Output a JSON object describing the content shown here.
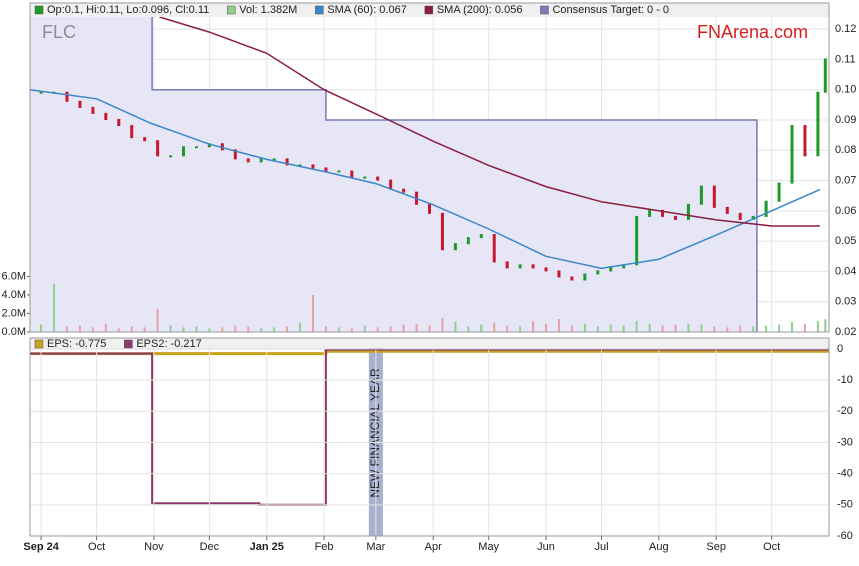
{
  "chart_data": [
    {
      "type": "stock",
      "watermark": "FLC",
      "brand": "FNArena.com",
      "xlim": [
        -6,
        426
      ],
      "ylim": [
        0.02,
        0.124
      ],
      "yticks": [
        0.02,
        0.03,
        0.04,
        0.05,
        0.06,
        0.07,
        0.08,
        0.09,
        {
          "value": 0.1,
          "label": "0.10"
        },
        0.11,
        0.12
      ],
      "y2lim": [
        0,
        34000000
      ],
      "y2ticks": [
        {
          "value": 0,
          "label": "0.0M"
        },
        {
          "value": 2000000,
          "label": "2.0M"
        },
        {
          "value": 4000000,
          "label": "4.0M"
        },
        {
          "value": 6000000,
          "label": "6.0M"
        }
      ],
      "up_color": "#1e9a28",
      "down_color": "#c8182e",
      "series": [
        {
          "name": "Op:0.1, Hi:0.11, Lo:0.096, Cl:0.11",
          "kind": "price",
          "color": "#1e9a28",
          "x": [
            0,
            7,
            14,
            21,
            28,
            35,
            42,
            49,
            56,
            63,
            70,
            77,
            84,
            91,
            98,
            105,
            112,
            119,
            126,
            133,
            140,
            147,
            154,
            161,
            168,
            175,
            182,
            189,
            196,
            203,
            210,
            217,
            224,
            231,
            238,
            245,
            252,
            259,
            266,
            273,
            280,
            287,
            294,
            301,
            308,
            315,
            322,
            329,
            336,
            343,
            350,
            357,
            364,
            371,
            378,
            385,
            392,
            399,
            406,
            413,
            420,
            424
          ],
          "values": [
            0.099,
            0.099,
            0.096,
            0.094,
            0.092,
            0.09,
            0.088,
            0.084,
            0.083,
            0.078,
            0.078,
            0.081,
            0.081,
            0.082,
            0.08,
            0.077,
            0.076,
            0.077,
            0.077,
            0.075,
            0.075,
            0.074,
            0.073,
            0.073,
            0.071,
            0.071,
            0.07,
            0.067,
            0.066,
            0.062,
            0.059,
            0.047,
            0.049,
            0.051,
            0.052,
            0.043,
            0.041,
            0.042,
            0.041,
            0.04,
            0.038,
            0.037,
            0.039,
            0.04,
            0.041,
            0.042,
            0.058,
            0.06,
            0.058,
            0.057,
            0.062,
            0.068,
            0.061,
            0.059,
            0.057,
            0.058,
            0.063,
            0.069,
            0.088,
            0.078,
            0.099,
            0.11
          ]
        },
        {
          "name": "Vol: 1.382M",
          "kind": "volume",
          "axis": "y2",
          "color": "#8fd08f",
          "x": [
            0,
            7,
            14,
            21,
            28,
            35,
            42,
            49,
            56,
            63,
            70,
            77,
            84,
            91,
            98,
            105,
            112,
            119,
            126,
            133,
            140,
            147,
            154,
            161,
            168,
            175,
            182,
            189,
            196,
            203,
            210,
            217,
            224,
            231,
            238,
            245,
            252,
            259,
            266,
            273,
            280,
            287,
            294,
            301,
            308,
            315,
            322,
            329,
            336,
            343,
            350,
            357,
            364,
            371,
            378,
            385,
            392,
            399,
            406,
            413,
            420,
            424
          ],
          "values": [
            800000,
            5200000,
            600000,
            700000,
            500000,
            900000,
            400000,
            600000,
            500000,
            2500000,
            700000,
            500000,
            600000,
            400000,
            500000,
            700000,
            600000,
            400000,
            500000,
            600000,
            1000000,
            4000000,
            600000,
            500000,
            400000,
            700000,
            500000,
            600000,
            800000,
            900000,
            700000,
            1500000,
            1100000,
            600000,
            800000,
            1000000,
            700000,
            600000,
            1200000,
            900000,
            1400000,
            700000,
            900000,
            600000,
            800000,
            700000,
            1200000,
            900000,
            700000,
            800000,
            900000,
            800000,
            600000,
            500000,
            700000,
            600000,
            700000,
            800000,
            1100000,
            900000,
            1200000,
            1382000
          ]
        },
        {
          "name": "SMA (60): 0.067",
          "kind": "line",
          "color": "#3a86c8",
          "x": [
            -6,
            30,
            59,
            91,
            122,
            153,
            181,
            212,
            242,
            273,
            303,
            334,
            365,
            395,
            421
          ],
          "values": [
            0.1,
            0.097,
            0.089,
            0.082,
            0.077,
            0.073,
            0.069,
            0.062,
            0.054,
            0.045,
            0.041,
            0.044,
            0.052,
            0.06,
            0.067
          ]
        },
        {
          "name": "SMA (200): 0.056",
          "kind": "line",
          "color": "#8a1e3e",
          "x": [
            64,
            91,
            122,
            153,
            181,
            212,
            242,
            273,
            303,
            334,
            365,
            395,
            421
          ],
          "values": [
            0.124,
            0.119,
            0.112,
            0.1,
            0.092,
            0.083,
            0.075,
            0.068,
            0.063,
            0.06,
            0.057,
            0.055,
            0.055
          ]
        },
        {
          "name": "Consensus Target: 0 - 0",
          "kind": "target",
          "color": "#7a7ab8",
          "x": [
            -6,
            60,
            60,
            154,
            154,
            387,
            387
          ],
          "values": [
            0.13,
            0.13,
            0.1,
            0.1,
            0.09,
            0.09,
            0
          ]
        }
      ]
    },
    {
      "type": "line",
      "xlim": [
        -6,
        426
      ],
      "xticks": [
        {
          "value": 0,
          "label": "Sep 24"
        },
        {
          "value": 30,
          "label": "Oct"
        },
        {
          "value": 61,
          "label": "Nov"
        },
        {
          "value": 91,
          "label": "Dec"
        },
        {
          "value": 122,
          "label": "Jan 25"
        },
        {
          "value": 153,
          "label": "Feb"
        },
        {
          "value": 181,
          "label": "Mar"
        },
        {
          "value": 212,
          "label": "Apr"
        },
        {
          "value": 242,
          "label": "May"
        },
        {
          "value": 273,
          "label": "Jun"
        },
        {
          "value": 303,
          "label": "Jul"
        },
        {
          "value": 334,
          "label": "Aug"
        },
        {
          "value": 365,
          "label": "Sep"
        },
        {
          "value": 395,
          "label": "Oct"
        }
      ],
      "y2lim": [
        -60,
        3.5
      ],
      "y2ticks": [
        0,
        -10,
        -20,
        -30,
        -40,
        -50,
        -60
      ],
      "annotation": "NEW FINANCIAL YEAR",
      "series": [
        {
          "name": "EPS: -0.775",
          "axis": "y2",
          "color": "#c9a21c",
          "x": [
            -6,
            154,
            154,
            426
          ],
          "values": [
            -1.5,
            -1.5,
            -0.775,
            -0.775
          ]
        },
        {
          "name": "EPS2: -0.217",
          "axis": "y2",
          "color": "#8a3a6c",
          "x": [
            -6,
            60,
            60,
            118,
            118,
            154,
            154,
            426
          ],
          "values": [
            -1.5,
            -1.5,
            -49.5,
            -49.5,
            -50,
            -50,
            -0.217,
            -0.217
          ]
        }
      ]
    }
  ]
}
